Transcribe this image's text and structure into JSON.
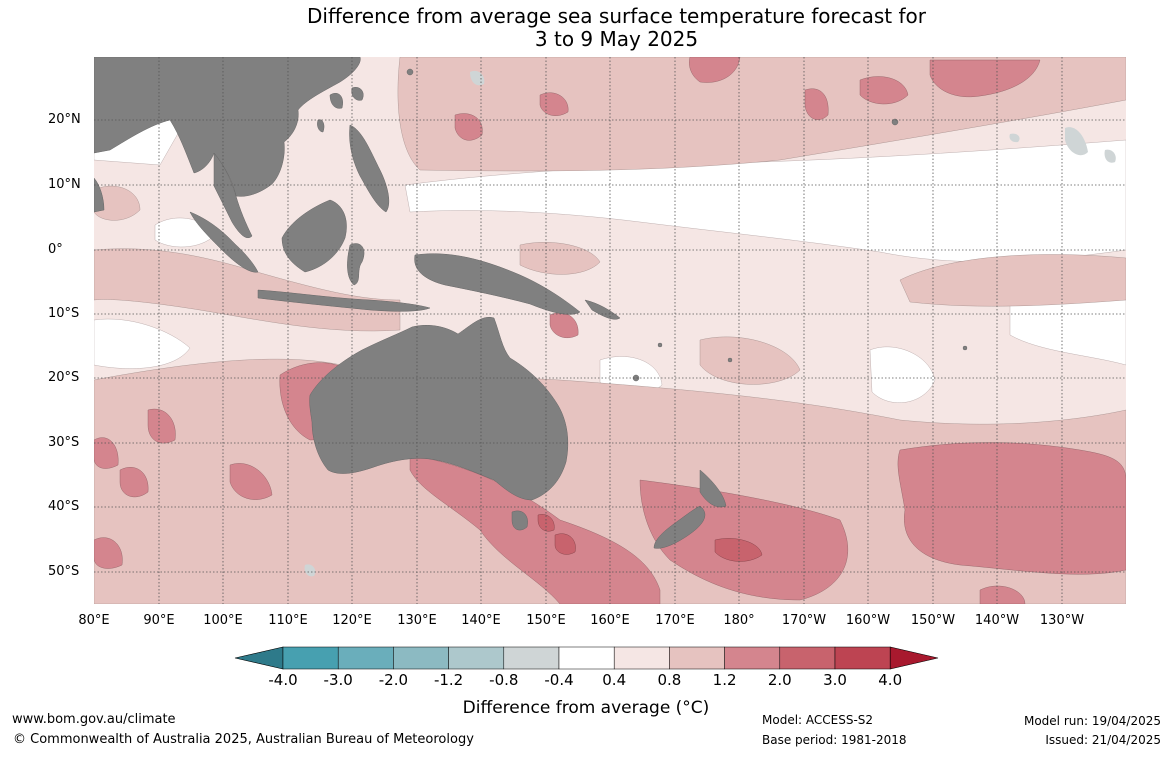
{
  "title": {
    "line1": "Difference from average sea surface temperature forecast for",
    "line2": "3 to 9 May 2025"
  },
  "lat_labels": [
    "20°N",
    "10°N",
    "0°",
    "10°S",
    "20°S",
    "30°S",
    "40°S",
    "50°S"
  ],
  "lon_labels": [
    "80°E",
    "90°E",
    "100°E",
    "110°E",
    "120°E",
    "130°E",
    "140°E",
    "150°E",
    "160°E",
    "170°E",
    "180°",
    "170°W",
    "160°W",
    "150°W",
    "140°W",
    "130°W"
  ],
  "colorbar": {
    "tick_labels": [
      "-4.0",
      "-3.0",
      "-2.0",
      "-1.2",
      "-0.8",
      "-0.4",
      "0.4",
      "0.8",
      "1.2",
      "2.0",
      "3.0",
      "4.0"
    ],
    "colors": [
      "#2e7a8a",
      "#47a0b0",
      "#6aaebb",
      "#8cbac2",
      "#adc8cc",
      "#cfd5d6",
      "#ffffff",
      "#f5e6e4",
      "#e6c3c0",
      "#d4858e",
      "#c8636d",
      "#bd4452",
      "#a8192e"
    ],
    "label": "Difference from average (°C)"
  },
  "footer": {
    "url": "www.bom.gov.au/climate",
    "copyright": "© Commonwealth of Australia 2025, Australian Bureau of Meteorology",
    "model": "Model: ACCESS-S2",
    "base_period": "Base period: 1981-2018",
    "model_run": "Model run: 19/04/2025",
    "issued": "Issued: 21/04/2025"
  },
  "map_colors": {
    "land": "#808080",
    "grid": "#555555"
  }
}
